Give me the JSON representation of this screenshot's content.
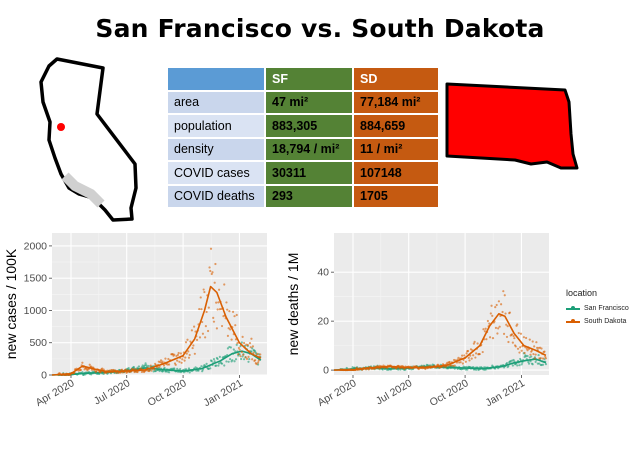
{
  "title": "San Francisco vs. South Dakota",
  "colors": {
    "sf": "#1b9e77",
    "sd": "#d95f02",
    "sd_map": "#ff0000",
    "sf_marker": "#ff0000"
  },
  "table": {
    "headers": [
      "",
      "SF",
      "SD"
    ],
    "rows": [
      {
        "label": "area",
        "sf": "47 mi²",
        "sd": "77,184 mi²"
      },
      {
        "label": "population",
        "sf": "883,305",
        "sd": "884,659"
      },
      {
        "label": "density",
        "sf": "18,794 / mi²",
        "sd": "11 / mi²"
      },
      {
        "label": "COVID cases",
        "sf": "30311",
        "sd": "107148"
      },
      {
        "label": "COVID deaths",
        "sf": "293",
        "sd": "1705"
      }
    ]
  },
  "legend": {
    "title": "location",
    "items": [
      "San Francisco",
      "South Dakota"
    ]
  },
  "chart_data": [
    {
      "type": "line",
      "ylabel": "new cases / 100K",
      "xlabel": "",
      "x_ticks": [
        "Apr 2020",
        "Jul 2020",
        "Oct 2020",
        "Jan 2021"
      ],
      "x_tick_dates": [
        "2020-04-01",
        "2020-07-01",
        "2020-10-01",
        "2021-01-01"
      ],
      "xlim": [
        "2020-03-01",
        "2021-02-15"
      ],
      "ylim": [
        0,
        2200
      ],
      "y_ticks": [
        0,
        500,
        1000,
        1500,
        2000
      ],
      "series": [
        {
          "name": "San Francisco",
          "points": [
            [
              "2020-03-01",
              0
            ],
            [
              "2020-04-01",
              10
            ],
            [
              "2020-05-01",
              30
            ],
            [
              "2020-06-01",
              40
            ],
            [
              "2020-07-01",
              70
            ],
            [
              "2020-08-01",
              110
            ],
            [
              "2020-09-01",
              80
            ],
            [
              "2020-10-01",
              60
            ],
            [
              "2020-11-01",
              100
            ],
            [
              "2020-12-01",
              220
            ],
            [
              "2020-12-20",
              330
            ],
            [
              "2021-01-05",
              370
            ],
            [
              "2021-01-20",
              330
            ],
            [
              "2021-02-05",
              230
            ]
          ]
        },
        {
          "name": "South Dakota",
          "points": [
            [
              "2020-03-01",
              0
            ],
            [
              "2020-04-01",
              20
            ],
            [
              "2020-04-20",
              140
            ],
            [
              "2020-05-10",
              90
            ],
            [
              "2020-06-01",
              50
            ],
            [
              "2020-07-01",
              60
            ],
            [
              "2020-08-01",
              80
            ],
            [
              "2020-09-01",
              180
            ],
            [
              "2020-10-01",
              300
            ],
            [
              "2020-10-20",
              560
            ],
            [
              "2020-11-05",
              1000
            ],
            [
              "2020-11-15",
              1370
            ],
            [
              "2020-11-25",
              1280
            ],
            [
              "2020-12-10",
              900
            ],
            [
              "2021-01-01",
              500
            ],
            [
              "2021-01-20",
              330
            ],
            [
              "2021-02-05",
              260
            ]
          ]
        }
      ]
    },
    {
      "type": "line",
      "ylabel": "new deaths / 1M",
      "xlabel": "",
      "x_ticks": [
        "Apr 2020",
        "Jul 2020",
        "Oct 2020",
        "Jan 2021"
      ],
      "x_tick_dates": [
        "2020-04-01",
        "2020-07-01",
        "2020-10-01",
        "2021-01-01"
      ],
      "xlim": [
        "2020-03-01",
        "2021-02-15"
      ],
      "ylim": [
        -2,
        56
      ],
      "y_ticks": [
        0,
        20,
        40
      ],
      "series": [
        {
          "name": "San Francisco",
          "points": [
            [
              "2020-03-01",
              0
            ],
            [
              "2020-04-01",
              0.5
            ],
            [
              "2020-05-01",
              1
            ],
            [
              "2020-06-01",
              0.5
            ],
            [
              "2020-07-01",
              0.8
            ],
            [
              "2020-08-01",
              1.5
            ],
            [
              "2020-09-01",
              1.2
            ],
            [
              "2020-10-01",
              0.8
            ],
            [
              "2020-11-01",
              0.6
            ],
            [
              "2020-12-01",
              1.5
            ],
            [
              "2020-12-20",
              3
            ],
            [
              "2021-01-10",
              4
            ],
            [
              "2021-01-25",
              4.5
            ],
            [
              "2021-02-10",
              3
            ]
          ]
        },
        {
          "name": "South Dakota",
          "points": [
            [
              "2020-03-01",
              0
            ],
            [
              "2020-04-01",
              0
            ],
            [
              "2020-05-01",
              1
            ],
            [
              "2020-06-01",
              1.5
            ],
            [
              "2020-07-01",
              1
            ],
            [
              "2020-08-01",
              1
            ],
            [
              "2020-09-01",
              2
            ],
            [
              "2020-10-01",
              5
            ],
            [
              "2020-10-25",
              10
            ],
            [
              "2020-11-10",
              18
            ],
            [
              "2020-11-25",
              23
            ],
            [
              "2020-12-05",
              22
            ],
            [
              "2020-12-20",
              15
            ],
            [
              "2021-01-05",
              10
            ],
            [
              "2021-01-25",
              8
            ],
            [
              "2021-02-10",
              6
            ]
          ]
        }
      ]
    }
  ]
}
